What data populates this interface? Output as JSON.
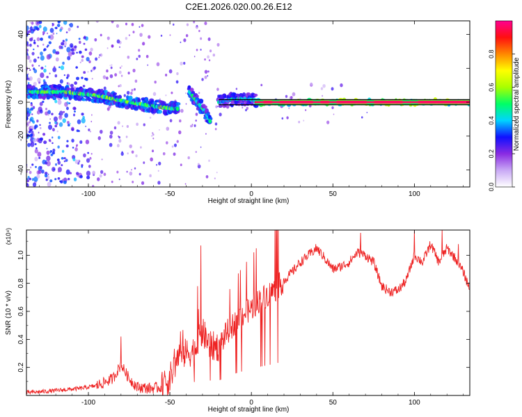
{
  "title": "C2E1.2026.020.00.26.E12",
  "chart_data": [
    {
      "type": "heatmap",
      "xlabel": "Height of straight line (km)",
      "ylabel": "Frequency (Hz)",
      "xlim": [
        -138,
        134
      ],
      "ylim": [
        -50,
        48
      ],
      "x_ticks": [
        -100,
        -50,
        0,
        50,
        100
      ],
      "x_tick_labels": [
        "-100",
        "-50",
        "0",
        "50",
        "100"
      ],
      "y_ticks": [
        -40,
        -20,
        0,
        20,
        40
      ],
      "y_tick_labels": [
        "-40",
        "-20",
        "0",
        "20",
        "40"
      ],
      "colorbar": {
        "label": "Normalized spectral amplitude",
        "range": [
          0,
          1
        ],
        "ticks": [
          0.0,
          0.2,
          0.4,
          0.6,
          0.8
        ],
        "tick_labels": [
          "0.0",
          "0.2",
          "0.4",
          "0.6",
          "0.8"
        ],
        "colors": [
          "#ffffff",
          "#c9a9f5",
          "#8a2be2",
          "#1010ff",
          "#00d4ff",
          "#00ff66",
          "#a8ff00",
          "#ffff00",
          "#ff8800",
          "#ff1010",
          "#ff0090"
        ]
      },
      "ridge_segments": [
        {
          "x": [
            -138,
            -115,
            -95,
            -75,
            -62,
            -55,
            -45
          ],
          "y": [
            6,
            6,
            4,
            0,
            -2,
            -3,
            -4
          ],
          "amp": 0.55
        },
        {
          "x": [
            -38,
            -33,
            -28,
            -25
          ],
          "y": [
            6,
            0,
            -6,
            -12
          ],
          "amp": 0.5
        },
        {
          "x": [
            -20,
            -10,
            -3,
            3
          ],
          "y": [
            0,
            2,
            2,
            1
          ],
          "amp": 0.45
        },
        {
          "x": [
            3,
            40,
            60,
            80,
            100,
            134
          ],
          "y": [
            0,
            0,
            0,
            0,
            0,
            0
          ],
          "amp": 0.95
        }
      ],
      "horizontal_lines_hz": [
        1.5,
        -1.5
      ]
    },
    {
      "type": "line",
      "xlabel": "Height of straight line (km)",
      "ylabel": "SNR (10 * v/v)",
      "y_multiplier_label": "(x10⁴)",
      "xlim": [
        -138,
        134
      ],
      "ylim": [
        0,
        1.18
      ],
      "x_ticks": [
        -100,
        -50,
        0,
        50,
        100
      ],
      "x_tick_labels": [
        "-100",
        "-50",
        "0",
        "50",
        "100"
      ],
      "y_ticks": [
        0.2,
        0.4,
        0.6,
        0.8,
        1.0
      ],
      "y_tick_labels": [
        "0.2",
        "0.4",
        "0.6",
        "0.8",
        "1.0"
      ],
      "series": [
        {
          "name": "SNR",
          "color": "#ee2222",
          "x": [
            -138,
            -125,
            -115,
            -105,
            -95,
            -85,
            -80,
            -75,
            -70,
            -62,
            -55,
            -50,
            -45,
            -40,
            -35,
            -30,
            -25,
            -20,
            -15,
            -10,
            -5,
            0,
            5,
            10,
            15,
            20,
            25,
            30,
            35,
            40,
            45,
            50,
            55,
            60,
            65,
            70,
            75,
            80,
            85,
            90,
            95,
            100,
            105,
            110,
            115,
            120,
            125,
            130,
            134
          ],
          "y": [
            0.02,
            0.03,
            0.04,
            0.05,
            0.07,
            0.12,
            0.22,
            0.12,
            0.06,
            0.05,
            0.06,
            0.12,
            0.28,
            0.3,
            0.32,
            0.45,
            0.35,
            0.35,
            0.45,
            0.52,
            0.58,
            0.62,
            0.68,
            0.72,
            0.76,
            0.82,
            0.88,
            0.95,
            1.0,
            1.05,
            0.98,
            0.9,
            0.92,
            0.95,
            1.02,
            1.0,
            0.95,
            0.78,
            0.74,
            0.75,
            0.82,
            1.0,
            0.95,
            1.08,
            0.95,
            1.05,
            0.98,
            0.88,
            0.76
          ],
          "spikes": [
            {
              "x": -80,
              "y": 0.42
            },
            {
              "x": -31,
              "y": 1.07
            },
            {
              "x": -33,
              "y": 0.78
            },
            {
              "x": 67,
              "y": 1.16
            },
            {
              "x": 100,
              "y": 1.18
            },
            {
              "x": 117,
              "y": 1.18
            },
            {
              "x": 127,
              "y": 1.08
            }
          ]
        }
      ]
    }
  ]
}
